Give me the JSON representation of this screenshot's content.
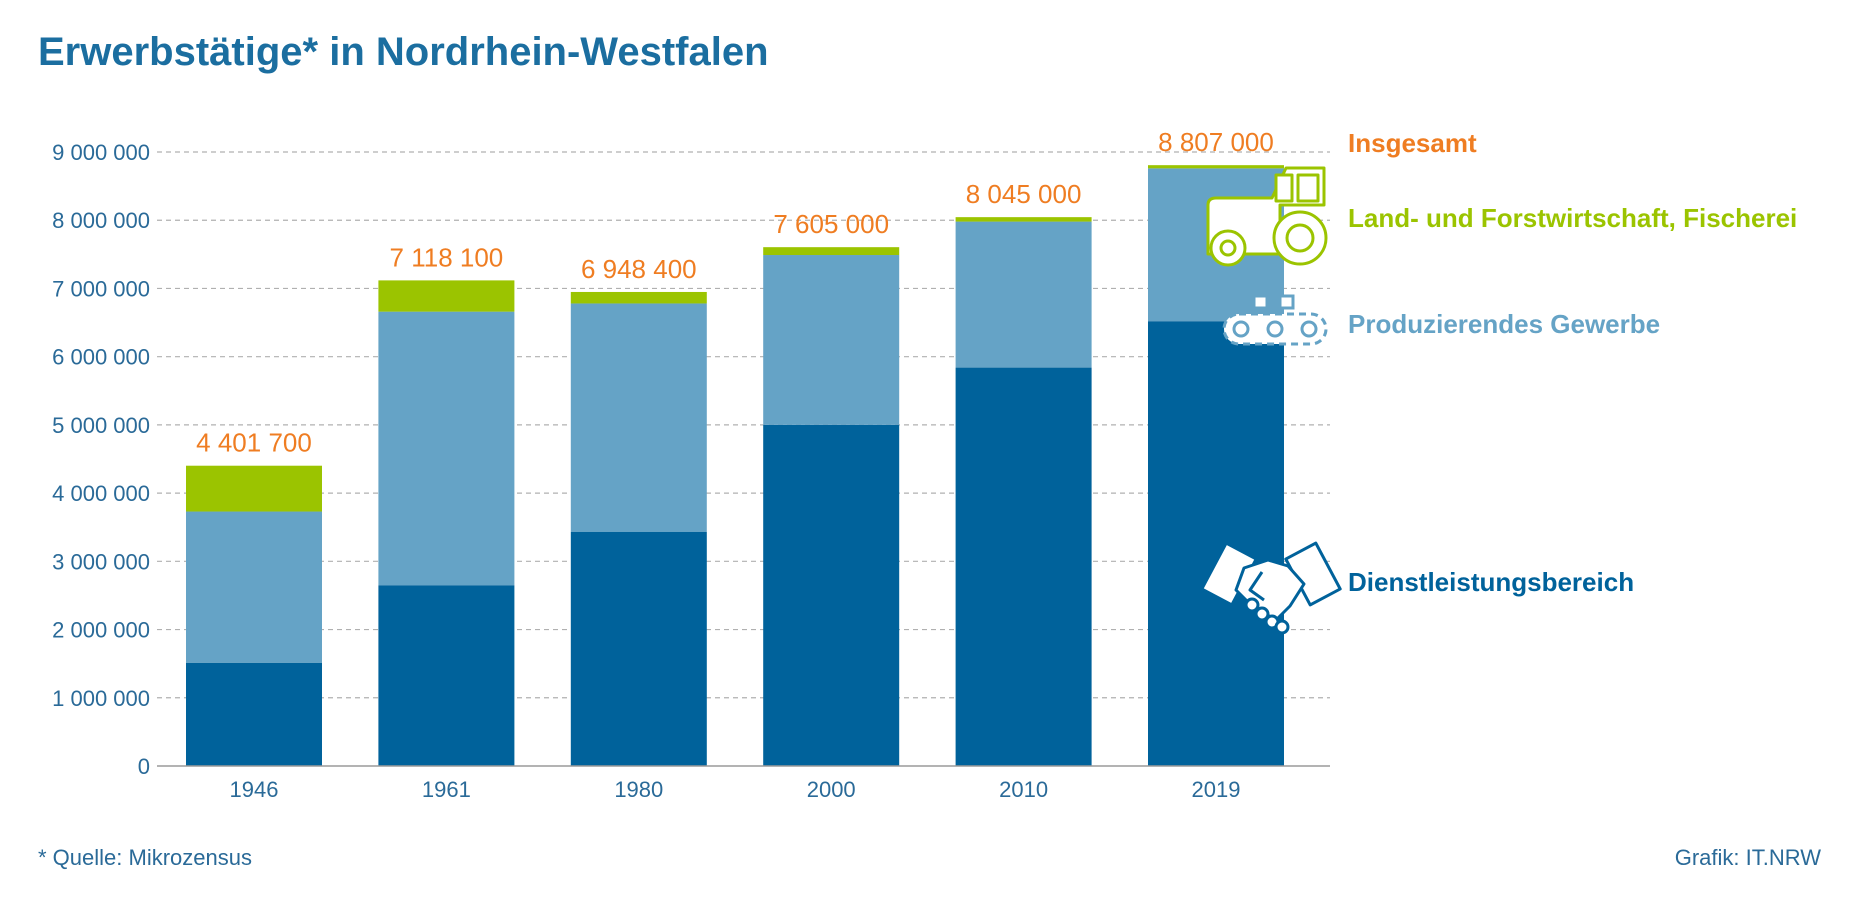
{
  "title": "Erwerbstätige* in Nordrhein-Westfalen",
  "footnote": "*  Quelle: Mikrozensus",
  "credit": "Grafik: IT.NRW",
  "colors": {
    "dienstleistung": "#00629b",
    "produzierend": "#65a3c6",
    "land": "#9bc400",
    "total": "#ef7d22",
    "axis_text": "#2a6a98",
    "grid": "#b0b0b0"
  },
  "chart_data": {
    "type": "bar",
    "stacked": true,
    "title": "Erwerbstätige* in Nordrhein-Westfalen",
    "xlabel": "",
    "ylabel": "",
    "ylim": [
      0,
      9000000
    ],
    "yticks": [
      0,
      1000000,
      2000000,
      3000000,
      4000000,
      5000000,
      6000000,
      7000000,
      8000000,
      9000000
    ],
    "ytick_labels": [
      "0",
      "1 000 000",
      "2 000 000",
      "3 000 000",
      "4 000 000",
      "5 000 000",
      "6 000 000",
      "7 000 000",
      "8 000 000",
      "9 000 000"
    ],
    "grid": true,
    "categories": [
      "1946",
      "1961",
      "1980",
      "2000",
      "2010",
      "2019"
    ],
    "series": [
      {
        "name": "Dienstleistungsbereich",
        "key": "dienstleistung",
        "values": [
          1510000,
          2650000,
          3430000,
          5000000,
          5840000,
          6520000
        ]
      },
      {
        "name": "Produzierendes Gewerbe",
        "key": "produzierend",
        "values": [
          2220000,
          4010000,
          3350000,
          2490000,
          2140000,
          2240000
        ]
      },
      {
        "name": "Land- und Forstwirtschaft, Fischerei",
        "key": "land",
        "values": [
          671700,
          458100,
          168400,
          115000,
          65000,
          47000
        ]
      }
    ],
    "totals": {
      "name": "Insgesamt",
      "values": [
        4401700,
        7118100,
        6948400,
        7605000,
        8045000,
        8807000
      ],
      "labels": [
        "4 401 700",
        "7 118 100",
        "6 948 400",
        "7 605 000",
        "8 045 000",
        "8 807 000"
      ]
    },
    "legend": [
      {
        "label": "Insgesamt",
        "key": "total",
        "icon": ""
      },
      {
        "label": "Land- und Forstwirtschaft, Fischerei",
        "key": "land",
        "icon": "tractor-icon"
      },
      {
        "label": "Produzierendes Gewerbe",
        "key": "produzierend",
        "icon": "conveyor-belt-icon"
      },
      {
        "label": "Dienstleistungsbereich",
        "key": "dienstleistung",
        "icon": "handshake-icon"
      }
    ]
  }
}
